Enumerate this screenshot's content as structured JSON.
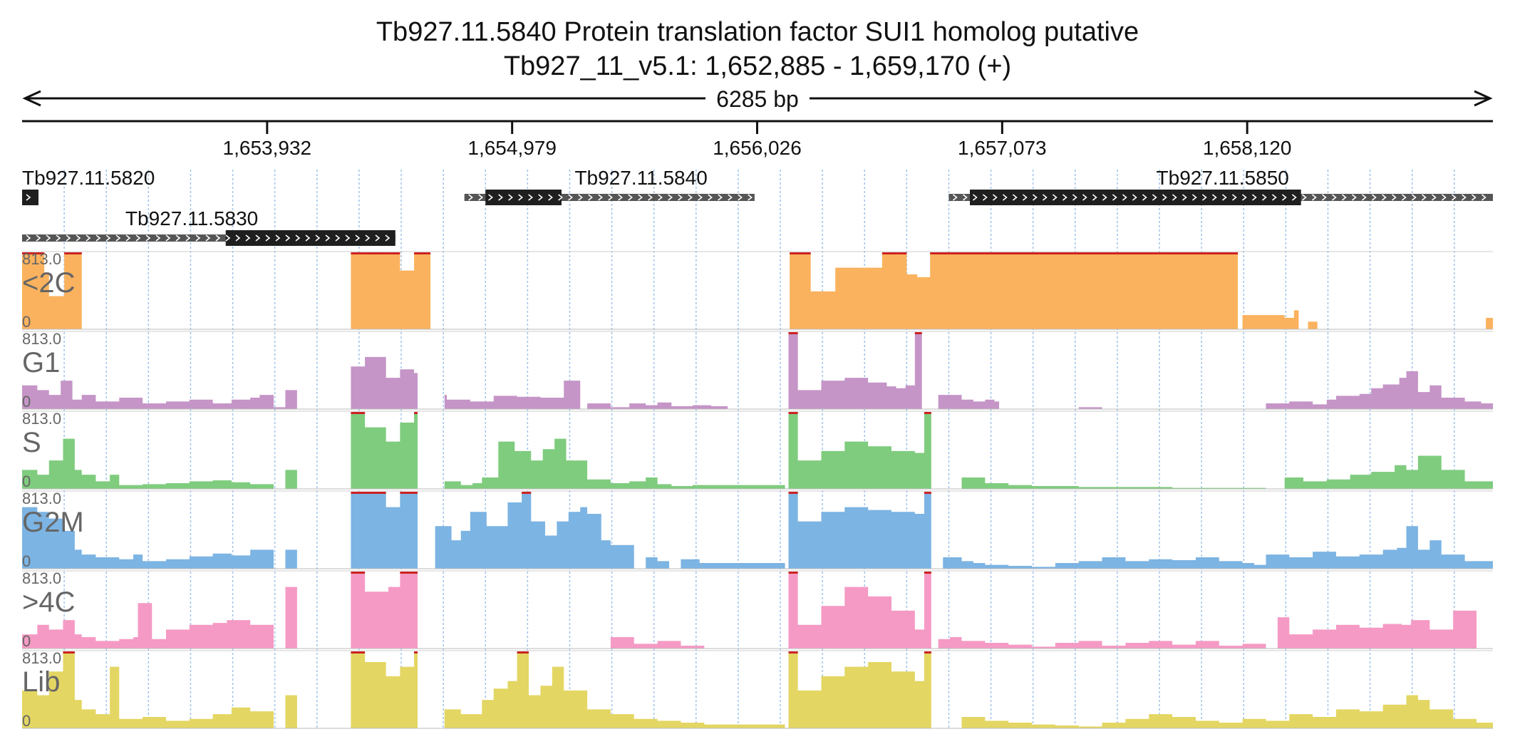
{
  "title": "Tb927.11.5840  Protein translation factor SUI1 homolog  putative",
  "subtitle": "Tb927_11_v5.1: 1,652,885 - 1,659,170 (+)",
  "span_label": "6285 bp",
  "colors": {
    "axis": "#111111",
    "gene_dark": "#1f1f1f",
    "gene_light": "#555555",
    "grid": "#9ec3ea",
    "track_label": "#666666",
    "clip": "#cc2222"
  },
  "chart_data": {
    "type": "area",
    "region": {
      "chrom": "Tb927_11_v5.1",
      "start": 1652885,
      "end": 1659170,
      "strand": "+"
    },
    "xticks": [
      {
        "pos": 1653932,
        "label": "1,653,932"
      },
      {
        "pos": 1654979,
        "label": "1,654,979"
      },
      {
        "pos": 1656026,
        "label": "1,656,026"
      },
      {
        "pos": 1657073,
        "label": "1,657,073"
      },
      {
        "pos": 1658120,
        "label": "1,658,120"
      }
    ],
    "grid_every_bp": 180,
    "genes": [
      {
        "name": "Tb927.11.5820",
        "row": 0,
        "start": 1652885,
        "end": 1652955,
        "cds_start": 1652885,
        "cds_end": 1652955,
        "label_pos": 1652885
      },
      {
        "name": "Tb927.11.5840",
        "row": 0,
        "start": 1654775,
        "end": 1656015,
        "cds_start": 1654865,
        "cds_end": 1655190,
        "label_pos": 1655530
      },
      {
        "name": "Tb927.11.5850",
        "row": 0,
        "start": 1656845,
        "end": 1659170,
        "cds_start": 1656935,
        "cds_end": 1658350,
        "label_pos": 1658015
      },
      {
        "name": "Tb927.11.5830",
        "row": 1,
        "start": 1652885,
        "end": 1654480,
        "cds_start": 1653755,
        "cds_end": 1654480,
        "label_pos": 1653610
      }
    ],
    "ymax": 813.0,
    "ymax_label": "813.0",
    "ymin_label": "0",
    "tracks": [
      {
        "name": "<2C",
        "color": "#fbb25e",
        "x": [
          1652885,
          1652980,
          1653000,
          1653065,
          1653140,
          1654280,
          1654290,
          1654350,
          1654400,
          1654440,
          1654500,
          1654560,
          1654575,
          1654615,
          1654630,
          1656145,
          1656165,
          1656255,
          1656360,
          1656560,
          1656625,
          1656665,
          1656710,
          1656765,
          1658080,
          1658100,
          1658220,
          1658240,
          1658280,
          1658320,
          1658340,
          1658380,
          1658420,
          1659120,
          1659140,
          1659170
        ],
        "y": [
          813,
          600,
          350,
          813,
          0,
          0,
          813,
          813,
          813,
          813,
          620,
          813,
          813,
          813,
          0,
          0,
          813,
          400,
          650,
          813,
          813,
          580,
          550,
          813,
          0,
          150,
          150,
          150,
          120,
          200,
          0,
          80,
          0,
          0,
          120,
          250
        ]
      },
      {
        "name": "G1",
        "color": "#c595c7",
        "x": [
          1652885,
          1652950,
          1653000,
          1653050,
          1653100,
          1653140,
          1653200,
          1653300,
          1653400,
          1653500,
          1653600,
          1653700,
          1653780,
          1653860,
          1653900,
          1653960,
          1654010,
          1654060,
          1654270,
          1654290,
          1654350,
          1654440,
          1654500,
          1654560,
          1654575,
          1654630,
          1654690,
          1654700,
          1654800,
          1654900,
          1655000,
          1655100,
          1655200,
          1655270,
          1655300,
          1655400,
          1655480,
          1655550,
          1655600,
          1655660,
          1655750,
          1655830,
          1655900,
          1656100,
          1656145,
          1656160,
          1656200,
          1656300,
          1656400,
          1656500,
          1656580,
          1656620,
          1656660,
          1656700,
          1656730,
          1656760,
          1656800,
          1656900,
          1656950,
          1657000,
          1657040,
          1657060,
          1657140,
          1657200,
          1657300,
          1657400,
          1657500,
          1657700,
          1657900,
          1658050,
          1658090,
          1658200,
          1658300,
          1658400,
          1658460,
          1658500,
          1658600,
          1658650,
          1658700,
          1658770,
          1658800,
          1658850,
          1658900,
          1658950,
          1659050,
          1659120,
          1659170
        ],
        "y": [
          250,
          200,
          150,
          300,
          100,
          150,
          80,
          120,
          60,
          80,
          100,
          60,
          100,
          120,
          150,
          20,
          200,
          0,
          0,
          450,
          550,
          330,
          420,
          380,
          0,
          0,
          150,
          100,
          80,
          140,
          130,
          120,
          300,
          0,
          60,
          20,
          60,
          40,
          70,
          30,
          40,
          30,
          0,
          0,
          0,
          813,
          200,
          300,
          330,
          280,
          240,
          220,
          250,
          813,
          0,
          0,
          150,
          100,
          80,
          100,
          80,
          0,
          0,
          0,
          0,
          20,
          0,
          0,
          0,
          0,
          0,
          60,
          80,
          50,
          100,
          140,
          160,
          220,
          260,
          330,
          400,
          180,
          250,
          120,
          80,
          60,
          40
        ]
      },
      {
        "name": "S",
        "color": "#7fcc7e",
        "x": [
          1652885,
          1652950,
          1653000,
          1653060,
          1653110,
          1653140,
          1653200,
          1653260,
          1653300,
          1653400,
          1653500,
          1653600,
          1653700,
          1653780,
          1653860,
          1653960,
          1654010,
          1654060,
          1654280,
          1654290,
          1654350,
          1654440,
          1654500,
          1654560,
          1654575,
          1654630,
          1654690,
          1654760,
          1654810,
          1654850,
          1654920,
          1654990,
          1655060,
          1655110,
          1655160,
          1655210,
          1655300,
          1655400,
          1655480,
          1655550,
          1655600,
          1655660,
          1655750,
          1656145,
          1656160,
          1656200,
          1656300,
          1656400,
          1656500,
          1656600,
          1656700,
          1656740,
          1656770,
          1656900,
          1657000,
          1657100,
          1657200,
          1657400,
          1657800,
          1658200,
          1658280,
          1658360,
          1658460,
          1658560,
          1658650,
          1658750,
          1658800,
          1658850,
          1658950,
          1659050,
          1659170
        ],
        "y": [
          200,
          150,
          300,
          530,
          200,
          150,
          80,
          150,
          40,
          50,
          60,
          80,
          90,
          70,
          50,
          0,
          200,
          0,
          0,
          813,
          650,
          500,
          700,
          813,
          0,
          0,
          80,
          40,
          60,
          120,
          500,
          400,
          300,
          420,
          530,
          300,
          100,
          60,
          80,
          120,
          50,
          30,
          40,
          0,
          813,
          300,
          400,
          500,
          450,
          400,
          380,
          813,
          0,
          120,
          60,
          40,
          30,
          20,
          10,
          0,
          120,
          80,
          100,
          150,
          180,
          250,
          200,
          350,
          200,
          80,
          30
        ]
      },
      {
        "name": "G2M",
        "color": "#7cb4e3",
        "x": [
          1652885,
          1652950,
          1653000,
          1653060,
          1653110,
          1653140,
          1653200,
          1653300,
          1653360,
          1653400,
          1653500,
          1653600,
          1653700,
          1653780,
          1653860,
          1653960,
          1654010,
          1654060,
          1654280,
          1654290,
          1654350,
          1654400,
          1654440,
          1654500,
          1654560,
          1654575,
          1654630,
          1654650,
          1654720,
          1654760,
          1654800,
          1654870,
          1654960,
          1655020,
          1655060,
          1655120,
          1655170,
          1655220,
          1655270,
          1655300,
          1655360,
          1655400,
          1655500,
          1655550,
          1655600,
          1655650,
          1655700,
          1655780,
          1656145,
          1656160,
          1656200,
          1656300,
          1656400,
          1656500,
          1656600,
          1656700,
          1656740,
          1656770,
          1656820,
          1656900,
          1656950,
          1657000,
          1657100,
          1657200,
          1657300,
          1657400,
          1657500,
          1657600,
          1657700,
          1657800,
          1657900,
          1658000,
          1658100,
          1658150,
          1658200,
          1658300,
          1658400,
          1658500,
          1658600,
          1658700,
          1658760,
          1658800,
          1658850,
          1658900,
          1658950,
          1659050,
          1659170
        ],
        "y": [
          650,
          600,
          530,
          400,
          200,
          150,
          120,
          100,
          150,
          80,
          100,
          130,
          160,
          140,
          200,
          0,
          200,
          0,
          0,
          813,
          813,
          813,
          650,
          813,
          813,
          0,
          0,
          450,
          300,
          400,
          600,
          450,
          700,
          813,
          500,
          350,
          500,
          600,
          650,
          580,
          300,
          250,
          0,
          120,
          80,
          0,
          100,
          60,
          0,
          813,
          500,
          600,
          650,
          620,
          600,
          580,
          813,
          0,
          120,
          80,
          60,
          40,
          30,
          20,
          60,
          80,
          120,
          80,
          100,
          90,
          120,
          80,
          60,
          40,
          150,
          120,
          180,
          130,
          150,
          200,
          220,
          450,
          200,
          300,
          150,
          80,
          50
        ]
      },
      {
        "name": ">4C",
        "color": "#f59ac4",
        "x": [
          1652885,
          1652950,
          1653000,
          1653060,
          1653110,
          1653140,
          1653200,
          1653300,
          1653360,
          1653380,
          1653440,
          1653500,
          1653600,
          1653700,
          1653760,
          1653860,
          1653960,
          1654010,
          1654060,
          1654280,
          1654290,
          1654350,
          1654450,
          1654500,
          1654560,
          1654575,
          1654630,
          1654700,
          1654800,
          1654900,
          1655000,
          1655100,
          1655200,
          1655300,
          1655400,
          1655500,
          1655600,
          1655700,
          1655800,
          1656145,
          1656160,
          1656200,
          1656300,
          1656400,
          1656500,
          1656600,
          1656700,
          1656740,
          1656770,
          1656800,
          1656850,
          1656900,
          1657000,
          1657100,
          1657200,
          1657300,
          1657400,
          1657500,
          1657600,
          1657700,
          1657800,
          1657900,
          1658000,
          1658100,
          1658200,
          1658250,
          1658300,
          1658400,
          1658500,
          1658600,
          1658700,
          1658780,
          1658820,
          1658900,
          1659000,
          1659100,
          1659170
        ],
        "y": [
          150,
          250,
          200,
          300,
          150,
          120,
          80,
          100,
          120,
          480,
          100,
          200,
          250,
          270,
          300,
          250,
          0,
          650,
          0,
          0,
          813,
          600,
          650,
          813,
          813,
          0,
          0,
          0,
          0,
          0,
          0,
          0,
          0,
          0,
          120,
          50,
          80,
          30,
          0,
          0,
          813,
          250,
          450,
          650,
          550,
          400,
          200,
          813,
          0,
          100,
          120,
          80,
          60,
          40,
          20,
          60,
          80,
          30,
          60,
          80,
          40,
          80,
          30,
          50,
          0,
          330,
          150,
          200,
          250,
          220,
          260,
          250,
          300,
          200,
          400,
          0,
          0
        ]
      },
      {
        "name": "Lib",
        "color": "#e3d663",
        "x": [
          1652885,
          1652950,
          1653000,
          1653060,
          1653110,
          1653140,
          1653200,
          1653260,
          1653300,
          1653400,
          1653500,
          1653600,
          1653700,
          1653780,
          1653860,
          1653960,
          1654010,
          1654060,
          1654280,
          1654290,
          1654350,
          1654440,
          1654500,
          1654560,
          1654575,
          1654630,
          1654690,
          1654760,
          1654850,
          1654900,
          1654960,
          1655000,
          1655050,
          1655100,
          1655150,
          1655200,
          1655300,
          1655400,
          1655500,
          1655600,
          1655700,
          1655800,
          1656145,
          1656160,
          1656200,
          1656300,
          1656400,
          1656500,
          1656600,
          1656700,
          1656740,
          1656770,
          1656900,
          1657000,
          1657100,
          1657200,
          1657300,
          1657400,
          1657500,
          1657600,
          1657700,
          1657800,
          1657900,
          1658000,
          1658100,
          1658200,
          1658300,
          1658400,
          1658500,
          1658600,
          1658700,
          1658800,
          1658850,
          1658900,
          1659000,
          1659100,
          1659170
        ],
        "y": [
          400,
          350,
          600,
          813,
          300,
          200,
          150,
          650,
          100,
          120,
          80,
          100,
          150,
          220,
          180,
          0,
          350,
          0,
          0,
          813,
          700,
          550,
          650,
          813,
          0,
          0,
          200,
          150,
          300,
          420,
          500,
          813,
          350,
          450,
          650,
          400,
          200,
          150,
          100,
          80,
          60,
          40,
          0,
          813,
          400,
          550,
          650,
          700,
          600,
          500,
          813,
          0,
          120,
          80,
          60,
          40,
          30,
          20,
          60,
          100,
          150,
          120,
          80,
          60,
          100,
          80,
          150,
          120,
          200,
          180,
          250,
          350,
          300,
          200,
          100,
          60,
          40
        ]
      }
    ]
  }
}
